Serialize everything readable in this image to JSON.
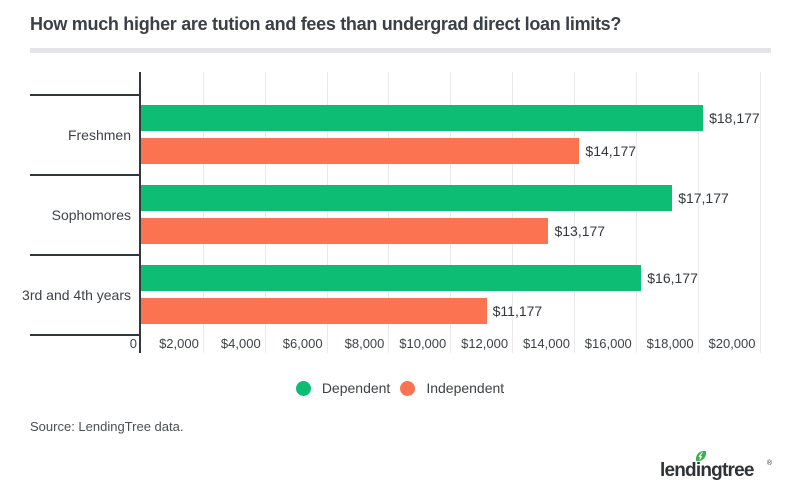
{
  "header": {
    "title": "How much higher are tution and fees than undergrad direct loan limits?"
  },
  "chart_data": {
    "type": "bar",
    "orientation": "horizontal",
    "title": "How much higher are tution and fees than undergrad direct loan limits?",
    "categories": [
      "Freshmen",
      "Sophomores",
      "3rd and 4th years"
    ],
    "series": [
      {
        "name": "Dependent",
        "color": "#0cbd73",
        "values": [
          18177,
          17177,
          16177
        ],
        "labels": [
          "$18,177",
          "$17,177",
          "$16,177"
        ]
      },
      {
        "name": "Independent",
        "color": "#fb7351",
        "values": [
          14177,
          13177,
          11177
        ],
        "labels": [
          "$14,177",
          "$13,177",
          "$11,177"
        ]
      }
    ],
    "x_axis": {
      "min": 0,
      "max": 20000,
      "tick_step": 2000,
      "tick_labels": [
        "0",
        "$2,000",
        "$4,000",
        "$6,000",
        "$8,000",
        "$10,000",
        "$12,000",
        "$14,000",
        "$16,000",
        "$18,000",
        "$20,000"
      ]
    },
    "grid": true,
    "legend_position": "bottom"
  },
  "source": {
    "text": "Source: LendingTree data."
  },
  "logo": {
    "brand": "lendingtree",
    "registered": "®",
    "leaf_color": "#33b34a",
    "text_color": "#2f3237"
  }
}
